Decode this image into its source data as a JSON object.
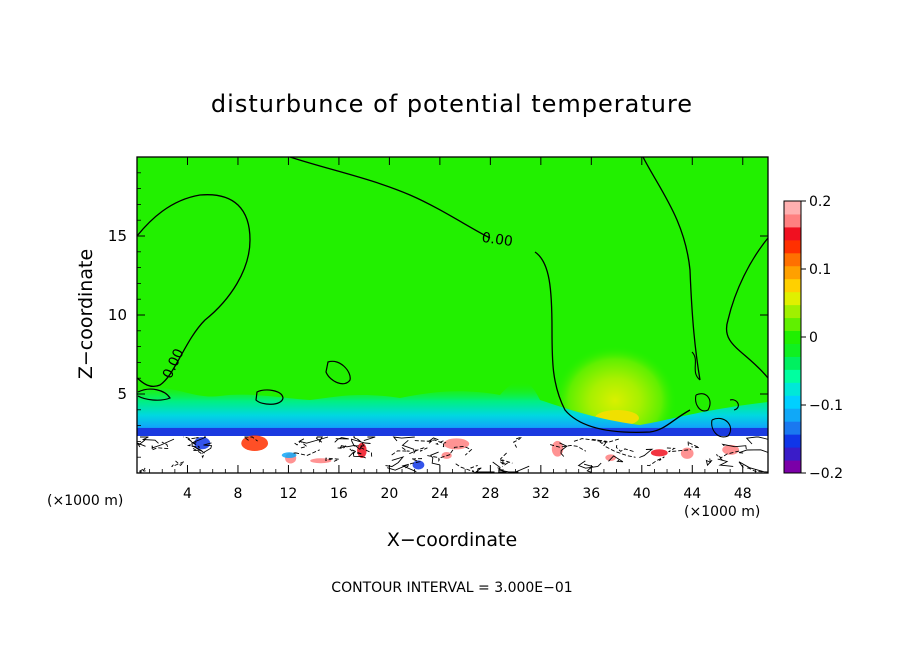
{
  "chart_data": {
    "type": "heatmap",
    "title": "disturbunce of potential temperature",
    "xlabel": "X−coordinate",
    "ylabel": "Z−coordinate",
    "x_unit_left": "(×1000 m)",
    "x_unit_right": "(×1000 m)",
    "xlim": [
      0,
      50
    ],
    "ylim": [
      0,
      20
    ],
    "x_ticks": [
      4,
      8,
      12,
      16,
      20,
      24,
      28,
      32,
      36,
      40,
      44,
      48
    ],
    "y_ticks": [
      5,
      10,
      15
    ],
    "contour_labels": [
      {
        "text": "0.00",
        "x": 28.5,
        "z": 14.5,
        "rotate": 8
      },
      {
        "text": "0.00",
        "x": 3.2,
        "z": 6.8,
        "rotate": -65
      }
    ],
    "footer": "CONTOUR INTERVAL = 3.000E−01",
    "colorbar": {
      "min": -0.2,
      "max": 0.2,
      "tick_labels": [
        "0.2",
        "0.1",
        "0",
        "−0.1",
        "−0.2"
      ],
      "tick_values": [
        0.2,
        0.1,
        0,
        -0.1,
        -0.2
      ],
      "colors": [
        "#7b00a8",
        "#3a1cc8",
        "#1036e8",
        "#1a78f0",
        "#10a8f8",
        "#00d0ff",
        "#00e8d8",
        "#00ffa0",
        "#00f060",
        "#10f020",
        "#20f000",
        "#60f000",
        "#a0f000",
        "#e0f000",
        "#ffd000",
        "#ffa000",
        "#ff7000",
        "#ff3000",
        "#f01020",
        "#ff8080",
        "#ffb0b0"
      ]
    },
    "field": {
      "background": "#22f000",
      "anomaly_warm_center": {
        "x": 38,
        "z": 4
      },
      "surface_layer_top_z": 2.4
    }
  }
}
